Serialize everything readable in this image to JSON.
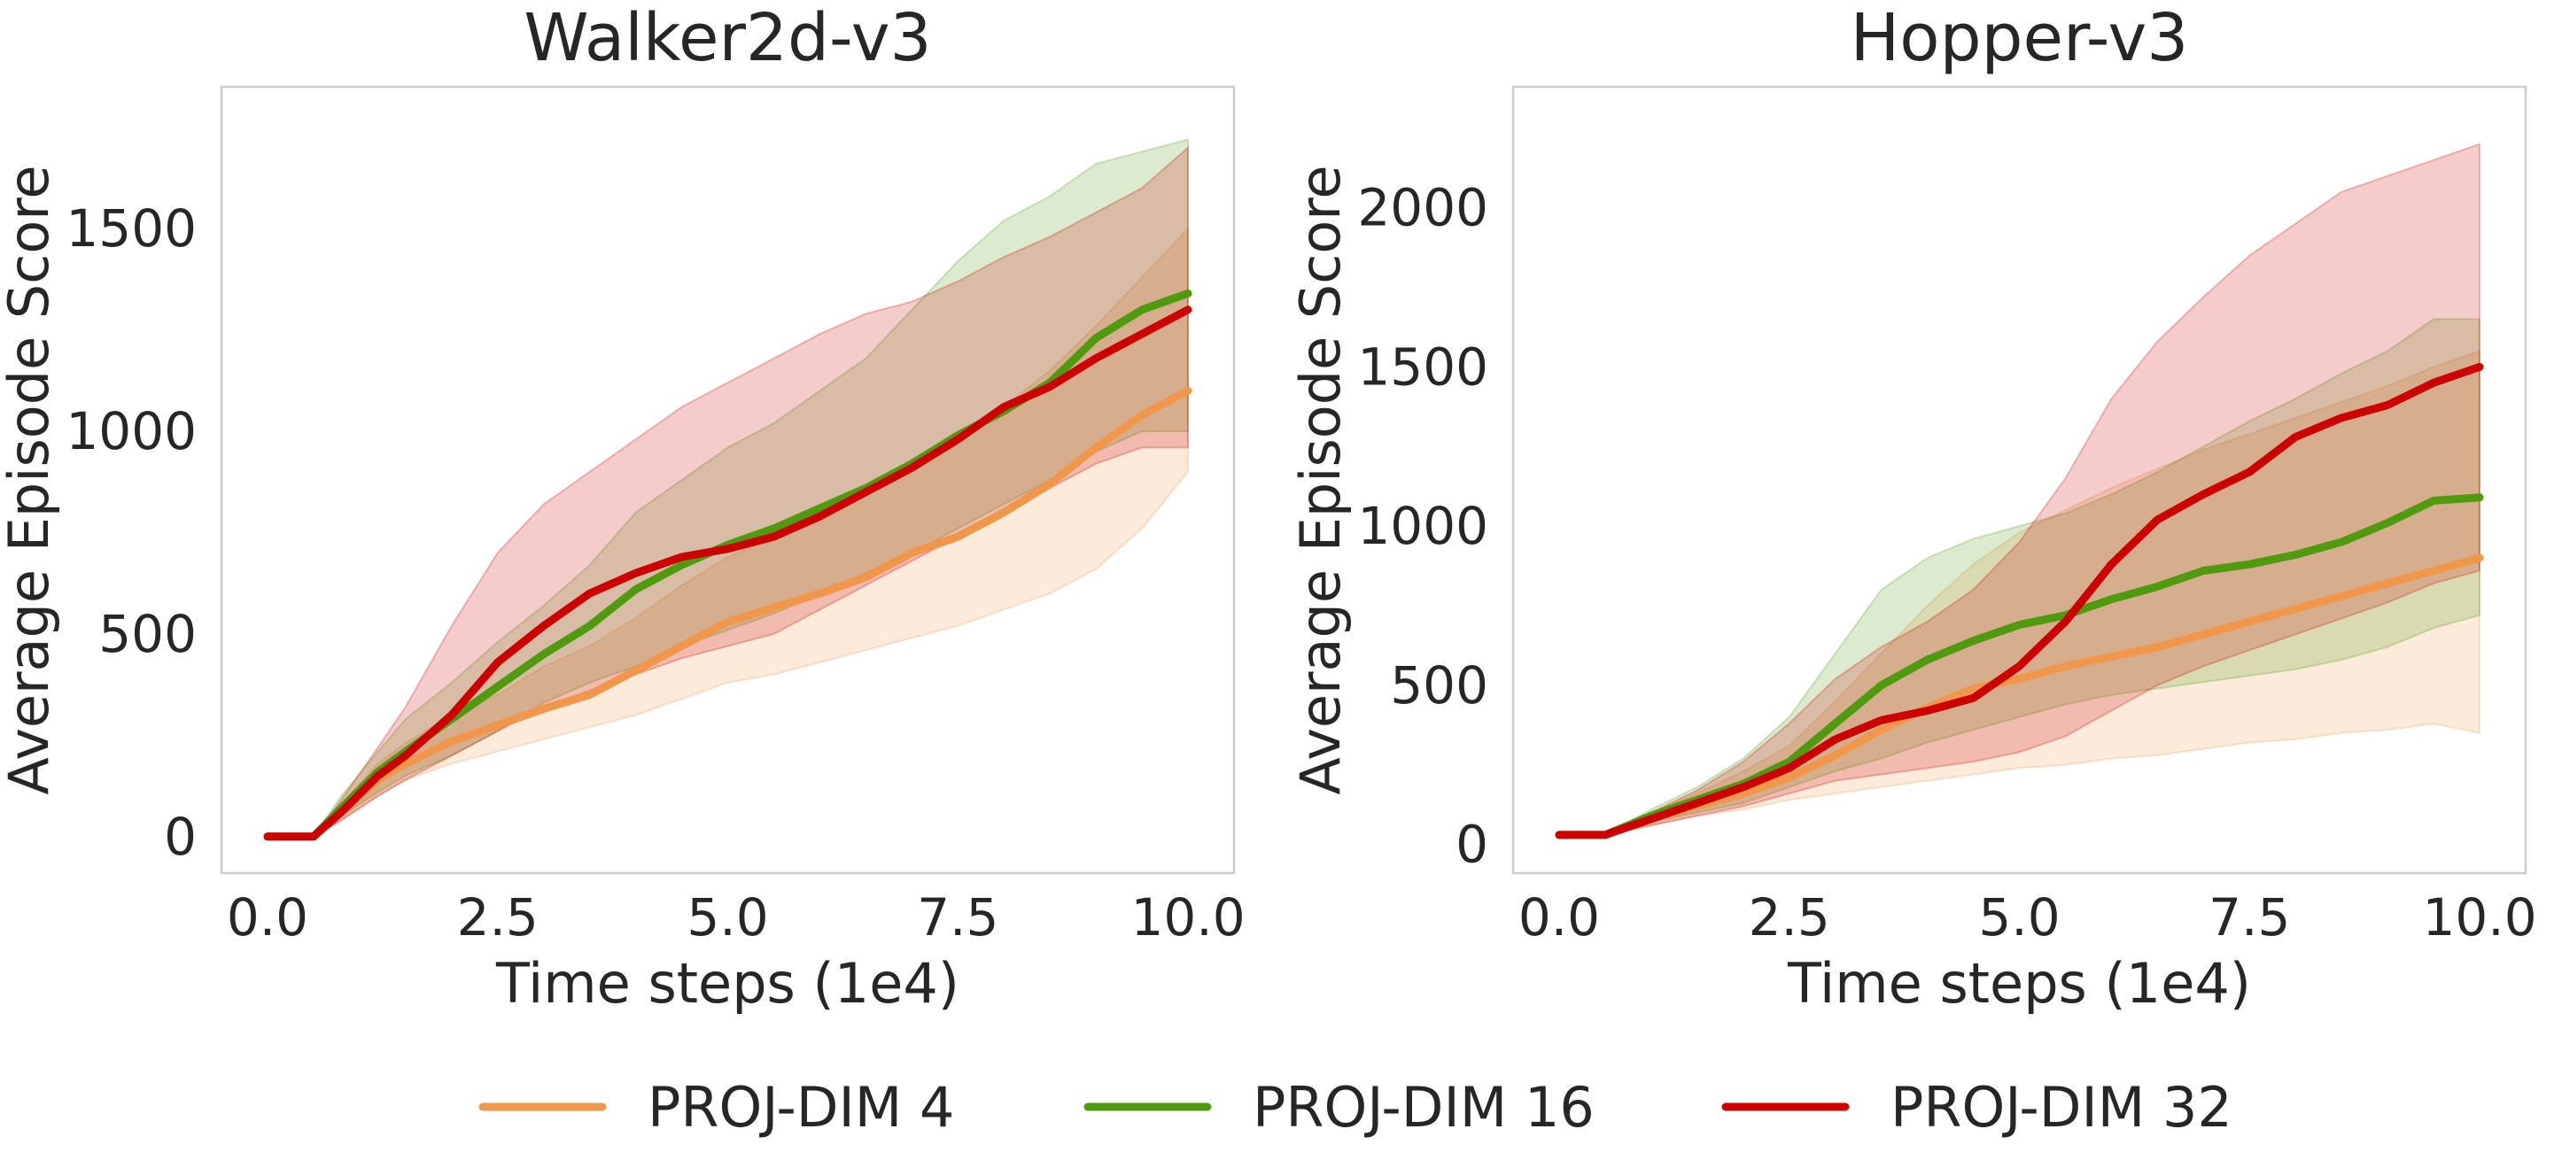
{
  "colors": {
    "proj4": "#f0974b",
    "proj16": "#4f9a0f",
    "proj32": "#cc0000",
    "frame": "#cccccc",
    "text": "#262626"
  },
  "legend": [
    {
      "key": "proj4",
      "label": "PROJ-DIM 4"
    },
    {
      "key": "proj16",
      "label": "PROJ-DIM 16"
    },
    {
      "key": "proj32",
      "label": "PROJ-DIM 32"
    }
  ],
  "chart_data": [
    {
      "type": "line",
      "title": "Walker2d-v3",
      "xlabel": "Time steps (1e4)",
      "ylabel": "Average Episode Score",
      "xlim": [
        -0.5,
        10.5
      ],
      "ylim": [
        -90,
        1850
      ],
      "xticks": [
        0,
        2.5,
        5,
        7.5,
        10
      ],
      "xtick_labels": [
        "0.0",
        "2.5",
        "5.0",
        "7.5",
        "10.0"
      ],
      "yticks": [
        0,
        500,
        1000,
        1500
      ],
      "ytick_labels": [
        "0",
        "500",
        "1000",
        "1500"
      ],
      "grid": false,
      "series": [
        {
          "key": "proj4",
          "x": [
            0,
            0.5,
            0.8,
            1.2,
            1.5,
            2.0,
            2.5,
            3.0,
            3.5,
            4.0,
            4.5,
            5.0,
            5.5,
            6.0,
            6.5,
            7.0,
            7.5,
            8.0,
            8.5,
            9.0,
            9.5,
            10.0
          ],
          "mean": [
            0,
            0,
            60,
            140,
            180,
            235,
            275,
            315,
            350,
            410,
            470,
            530,
            565,
            600,
            640,
            700,
            740,
            800,
            870,
            960,
            1040,
            1100
          ],
          "lower": [
            0,
            0,
            40,
            100,
            140,
            180,
            210,
            240,
            270,
            300,
            340,
            380,
            400,
            430,
            460,
            490,
            520,
            560,
            600,
            660,
            760,
            900
          ],
          "upper": [
            0,
            0,
            80,
            180,
            230,
            300,
            350,
            420,
            470,
            540,
            620,
            690,
            740,
            800,
            850,
            930,
            980,
            1060,
            1150,
            1260,
            1380,
            1500
          ]
        },
        {
          "key": "proj16",
          "x": [
            0,
            0.5,
            0.8,
            1.2,
            1.5,
            2.0,
            2.5,
            3.0,
            3.5,
            4.0,
            4.5,
            5.0,
            5.5,
            6.0,
            6.5,
            7.0,
            7.5,
            8.0,
            8.5,
            9.0,
            9.5,
            10.0
          ],
          "mean": [
            0,
            0,
            70,
            160,
            210,
            290,
            370,
            450,
            520,
            610,
            670,
            720,
            760,
            810,
            860,
            920,
            990,
            1050,
            1120,
            1230,
            1300,
            1340
          ],
          "lower": [
            0,
            0,
            50,
            110,
            150,
            200,
            260,
            330,
            380,
            420,
            470,
            510,
            550,
            600,
            650,
            700,
            760,
            820,
            880,
            950,
            1000,
            1000
          ],
          "upper": [
            0,
            0,
            100,
            210,
            290,
            380,
            480,
            570,
            670,
            800,
            880,
            960,
            1020,
            1100,
            1180,
            1300,
            1420,
            1520,
            1580,
            1660,
            1690,
            1720
          ]
        },
        {
          "key": "proj32",
          "x": [
            0,
            0.5,
            0.8,
            1.2,
            1.5,
            2.0,
            2.5,
            3.0,
            3.5,
            4.0,
            4.5,
            5.0,
            5.5,
            6.0,
            6.5,
            7.0,
            7.5,
            8.0,
            8.5,
            9.0,
            9.5,
            10.0
          ],
          "mean": [
            0,
            0,
            60,
            150,
            200,
            300,
            430,
            520,
            600,
            650,
            690,
            710,
            740,
            790,
            850,
            910,
            980,
            1060,
            1110,
            1180,
            1240,
            1300
          ],
          "lower": [
            0,
            0,
            40,
            100,
            140,
            200,
            260,
            320,
            360,
            400,
            440,
            470,
            500,
            560,
            620,
            680,
            740,
            800,
            860,
            920,
            960,
            960
          ],
          "upper": [
            0,
            0,
            90,
            220,
            320,
            520,
            700,
            820,
            900,
            980,
            1060,
            1120,
            1180,
            1240,
            1290,
            1320,
            1370,
            1430,
            1480,
            1540,
            1600,
            1700
          ]
        }
      ]
    },
    {
      "type": "line",
      "title": "Hopper-v3",
      "xlabel": "Time steps (1e4)",
      "ylabel": "Average Episode Score",
      "xlim": [
        -0.5,
        10.5
      ],
      "ylim": [
        -90,
        2380
      ],
      "xticks": [
        0,
        2.5,
        5,
        7.5,
        10
      ],
      "xtick_labels": [
        "0.0",
        "2.5",
        "5.0",
        "7.5",
        "10.0"
      ],
      "yticks": [
        0,
        500,
        1000,
        1500,
        2000
      ],
      "ytick_labels": [
        "0",
        "500",
        "1000",
        "1500",
        "2000"
      ],
      "grid": false,
      "series": [
        {
          "key": "proj4",
          "x": [
            0,
            0.5,
            1.0,
            1.5,
            2.0,
            2.5,
            3.0,
            3.5,
            4.0,
            4.5,
            5.0,
            5.5,
            6.0,
            6.5,
            7.0,
            7.5,
            8.0,
            8.5,
            9.0,
            9.5,
            10.0
          ],
          "mean": [
            30,
            30,
            80,
            120,
            160,
            210,
            280,
            360,
            430,
            490,
            520,
            560,
            590,
            620,
            660,
            700,
            740,
            780,
            820,
            860,
            900
          ],
          "lower": [
            30,
            30,
            60,
            90,
            110,
            140,
            160,
            180,
            200,
            220,
            240,
            250,
            270,
            280,
            300,
            320,
            330,
            350,
            360,
            380,
            350
          ],
          "upper": [
            30,
            30,
            100,
            160,
            230,
            310,
            450,
            600,
            750,
            880,
            980,
            1050,
            1120,
            1180,
            1240,
            1290,
            1340,
            1390,
            1440,
            1500,
            1550
          ]
        },
        {
          "key": "proj16",
          "x": [
            0,
            0.5,
            1.0,
            1.5,
            2.0,
            2.5,
            3.0,
            3.5,
            4.0,
            4.5,
            5.0,
            5.5,
            6.0,
            6.5,
            7.0,
            7.5,
            8.0,
            8.5,
            9.0,
            9.5,
            10.0
          ],
          "mean": [
            30,
            30,
            90,
            140,
            190,
            260,
            380,
            500,
            580,
            640,
            690,
            720,
            770,
            810,
            860,
            880,
            910,
            950,
            1010,
            1080,
            1090
          ],
          "lower": [
            30,
            30,
            70,
            100,
            130,
            180,
            230,
            270,
            320,
            360,
            400,
            440,
            470,
            490,
            510,
            530,
            550,
            580,
            620,
            680,
            720
          ],
          "upper": [
            30,
            30,
            110,
            180,
            270,
            400,
            600,
            800,
            900,
            960,
            1000,
            1040,
            1100,
            1170,
            1250,
            1330,
            1400,
            1480,
            1550,
            1650,
            1650
          ]
        },
        {
          "key": "proj32",
          "x": [
            0,
            0.5,
            1.0,
            1.5,
            2.0,
            2.5,
            3.0,
            3.5,
            4.0,
            4.5,
            5.0,
            5.5,
            6.0,
            6.5,
            7.0,
            7.5,
            8.0,
            8.5,
            9.0,
            9.5,
            10.0
          ],
          "mean": [
            30,
            30,
            80,
            130,
            180,
            240,
            330,
            390,
            420,
            460,
            560,
            700,
            880,
            1020,
            1100,
            1170,
            1280,
            1340,
            1380,
            1450,
            1500
          ],
          "lower": [
            30,
            30,
            60,
            90,
            120,
            160,
            200,
            220,
            240,
            260,
            290,
            340,
            420,
            500,
            560,
            610,
            660,
            710,
            760,
            820,
            860
          ],
          "upper": [
            30,
            30,
            100,
            170,
            260,
            380,
            520,
            620,
            700,
            800,
            950,
            1150,
            1400,
            1580,
            1720,
            1850,
            1950,
            2050,
            2100,
            2150,
            2200
          ]
        }
      ]
    }
  ]
}
